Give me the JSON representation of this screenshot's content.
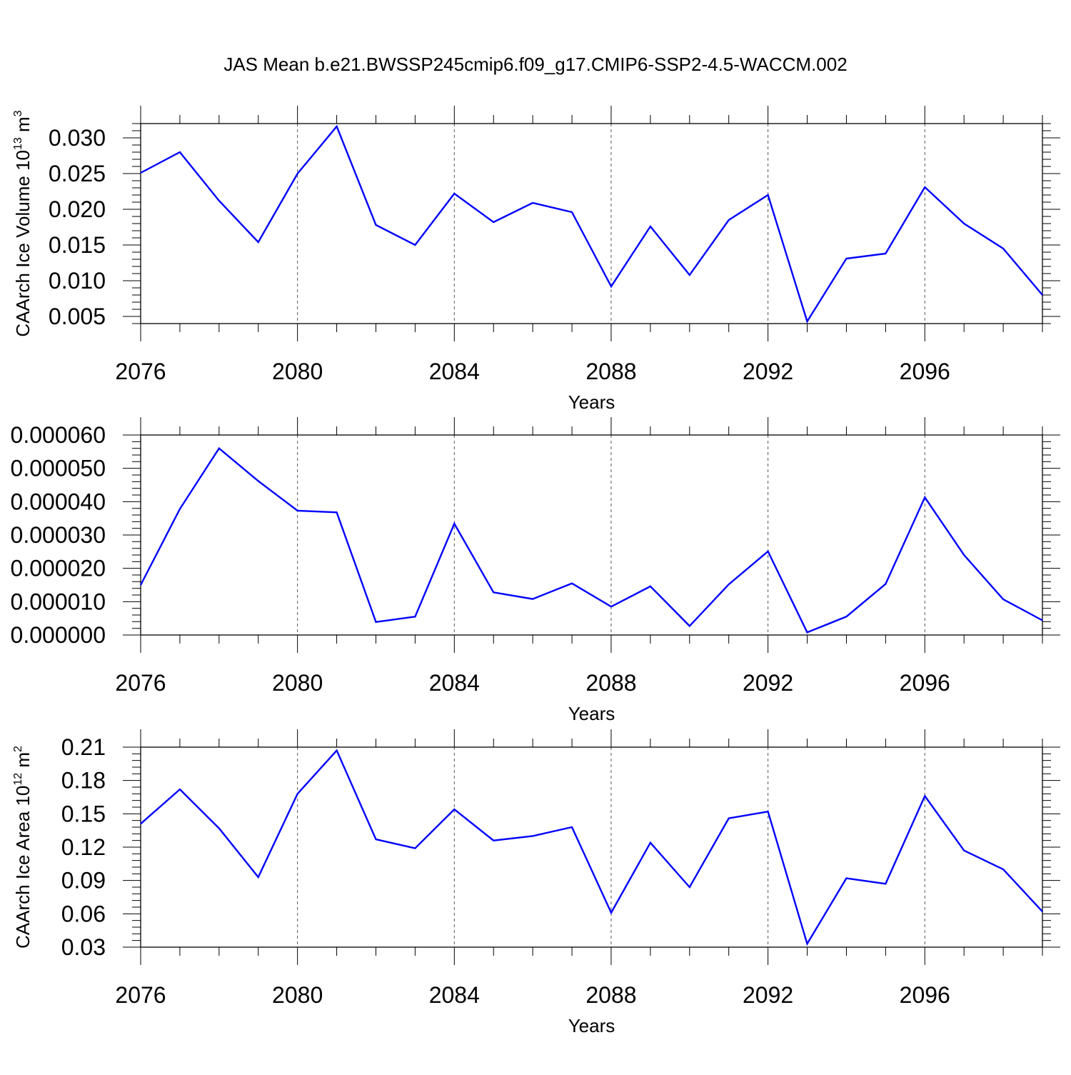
{
  "figure": {
    "title": "JAS Mean b.e21.BWSSP245cmip6.f09_g17.CMIP6-SSP2-4.5-WACCM.002",
    "series_color": "#0000ff"
  },
  "chart_data": [
    {
      "type": "line",
      "title": "",
      "xlabel": "Years",
      "ylabel_main": "CAArch Ice Volume 10",
      "ylabel_exp": "13",
      "ylabel_unit": "m",
      "ylabel_unit_exp": "3",
      "xlim": [
        2076,
        2099
      ],
      "ylim": [
        0.004,
        0.032
      ],
      "xticks": [
        2076,
        2080,
        2084,
        2088,
        2092,
        2096
      ],
      "xtick_labels": [
        "2076",
        "2080",
        "2084",
        "2088",
        "2092",
        "2096"
      ],
      "yticks": [
        0.005,
        0.01,
        0.015,
        0.02,
        0.025,
        0.03
      ],
      "ytick_labels": [
        "0.005",
        "0.010",
        "0.015",
        "0.020",
        "0.025",
        "0.030"
      ],
      "grid": "vertical dashed at major x ticks",
      "series": [
        {
          "color": "#0000ff",
          "x": [
            2076,
            2077,
            2078,
            2079,
            2080,
            2081,
            2082,
            2083,
            2084,
            2085,
            2086,
            2087,
            2088,
            2089,
            2090,
            2091,
            2092,
            2093,
            2094,
            2095,
            2096,
            2097,
            2098,
            2099
          ],
          "values": [
            0.0251,
            0.028,
            0.0212,
            0.0154,
            0.025,
            0.0316,
            0.0178,
            0.015,
            0.0222,
            0.0182,
            0.0209,
            0.0196,
            0.0092,
            0.0176,
            0.0108,
            0.0185,
            0.022,
            0.0043,
            0.0131,
            0.0138,
            0.0231,
            0.018,
            0.0145,
            0.008
          ]
        }
      ]
    },
    {
      "type": "line",
      "title": "",
      "xlabel": "Years",
      "ylabel_main": "",
      "ylabel_exp": "",
      "ylabel_unit": "",
      "ylabel_unit_exp": "",
      "xlim": [
        2076,
        2099
      ],
      "ylim": [
        0.0,
        6e-05
      ],
      "xticks": [
        2076,
        2080,
        2084,
        2088,
        2092,
        2096
      ],
      "xtick_labels": [
        "2076",
        "2080",
        "2084",
        "2088",
        "2092",
        "2096"
      ],
      "yticks": [
        0.0,
        1e-05,
        2e-05,
        3e-05,
        4e-05,
        5e-05,
        6e-05
      ],
      "ytick_labels": [
        "0.000000",
        "0.000010",
        "0.000020",
        "0.000030",
        "0.000040",
        "0.000050",
        "0.000060"
      ],
      "grid": "vertical dashed at major x ticks",
      "series": [
        {
          "color": "#0000ff",
          "x": [
            2076,
            2077,
            2078,
            2079,
            2080,
            2081,
            2082,
            2083,
            2084,
            2085,
            2086,
            2087,
            2088,
            2089,
            2090,
            2091,
            2092,
            2093,
            2094,
            2095,
            2096,
            2097,
            2098,
            2099
          ],
          "values": [
            1.5e-05,
            3.78e-05,
            5.6e-05,
            4.62e-05,
            3.73e-05,
            3.68e-05,
            3.9e-06,
            5.5e-06,
            3.34e-05,
            1.28e-05,
            1.08e-05,
            1.55e-05,
            8.5e-06,
            1.46e-05,
            2.7e-06,
            1.52e-05,
            2.51e-05,
            8e-07,
            5.5e-06,
            1.53e-05,
            4.13e-05,
            2.4e-05,
            1.07e-05,
            4.4e-06
          ]
        }
      ]
    },
    {
      "type": "line",
      "title": "",
      "xlabel": "Years",
      "ylabel_main": "CAArch Ice Area 10",
      "ylabel_exp": "12",
      "ylabel_unit": "m",
      "ylabel_unit_exp": "2",
      "xlim": [
        2076,
        2099
      ],
      "ylim": [
        0.03,
        0.21
      ],
      "xticks": [
        2076,
        2080,
        2084,
        2088,
        2092,
        2096
      ],
      "xtick_labels": [
        "2076",
        "2080",
        "2084",
        "2088",
        "2092",
        "2096"
      ],
      "yticks": [
        0.03,
        0.06,
        0.09,
        0.12,
        0.15,
        0.18,
        0.21
      ],
      "ytick_labels": [
        "0.03",
        "0.06",
        "0.09",
        "0.12",
        "0.15",
        "0.18",
        "0.21"
      ],
      "grid": "vertical dashed at major x ticks",
      "series": [
        {
          "color": "#0000ff",
          "x": [
            2076,
            2077,
            2078,
            2079,
            2080,
            2081,
            2082,
            2083,
            2084,
            2085,
            2086,
            2087,
            2088,
            2089,
            2090,
            2091,
            2092,
            2093,
            2094,
            2095,
            2096,
            2097,
            2098,
            2099
          ],
          "values": [
            0.141,
            0.172,
            0.137,
            0.093,
            0.168,
            0.207,
            0.127,
            0.119,
            0.154,
            0.126,
            0.13,
            0.138,
            0.061,
            0.124,
            0.084,
            0.146,
            0.152,
            0.033,
            0.092,
            0.087,
            0.166,
            0.117,
            0.1,
            0.062
          ]
        }
      ]
    }
  ]
}
